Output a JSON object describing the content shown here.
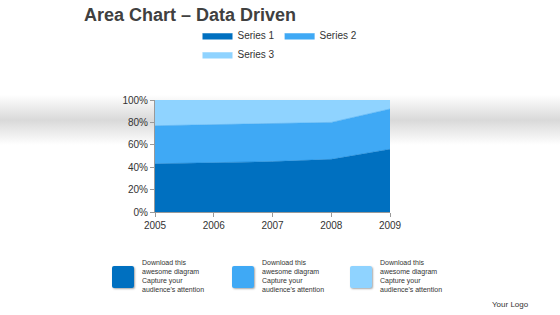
{
  "chart_data": {
    "type": "area",
    "title": "Area Chart – Data Driven",
    "x": [
      2005,
      2006,
      2007,
      2008,
      2009
    ],
    "series": [
      {
        "name": "Series 1",
        "color": "#0070c0",
        "values": [
          43,
          44,
          45,
          47,
          56
        ]
      },
      {
        "name": "Series 2",
        "color": "#3fa9f5",
        "values": [
          34,
          34,
          34,
          33,
          36
        ]
      },
      {
        "name": "Series 3",
        "color": "#8fd3ff",
        "values": [
          23,
          22,
          21,
          20,
          8
        ]
      }
    ],
    "stacked": true,
    "xlim": [
      2005,
      2009
    ],
    "xticks": [
      2005,
      2006,
      2007,
      2008,
      2009
    ],
    "ylim": [
      0,
      100
    ],
    "yticks": [
      {
        "value": 0,
        "label": "0%"
      },
      {
        "value": 20,
        "label": "20%"
      },
      {
        "value": 40,
        "label": "40%"
      },
      {
        "value": 60,
        "label": "60%"
      },
      {
        "value": 80,
        "label": "80%"
      },
      {
        "value": 100,
        "label": "100%"
      }
    ],
    "grid": false,
    "legend": "top"
  },
  "footer": {
    "captions": [
      [
        "Download this",
        "awesome diagram",
        "Capture your",
        "audience's attention"
      ],
      [
        "Download this",
        "awesome diagram",
        "Capture your",
        "audience's attention"
      ],
      [
        "Download this",
        "awesome diagram",
        "Capture your",
        "audience's attention"
      ]
    ],
    "logo": "Your Logo"
  }
}
